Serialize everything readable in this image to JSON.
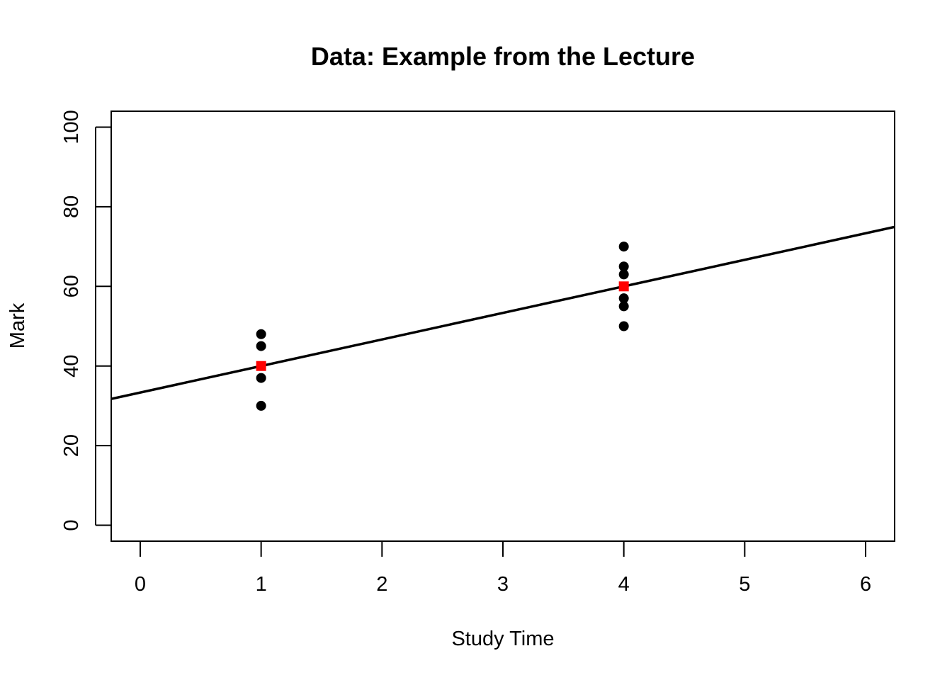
{
  "chart_data": {
    "type": "scatter",
    "title": "Data: Example from the Lecture",
    "xlabel": "Study Time",
    "ylabel": "Mark",
    "xlim": [
      -0.24,
      6.24
    ],
    "ylim": [
      -4,
      104
    ],
    "x_ticks": [
      0,
      1,
      2,
      3,
      4,
      5,
      6
    ],
    "y_ticks": [
      0,
      20,
      40,
      60,
      80,
      100
    ],
    "grid": false,
    "series": [
      {
        "kind": "points",
        "color": "#000000",
        "marker": "circle",
        "x": [
          1,
          1,
          1,
          1,
          4,
          4,
          4,
          4,
          4,
          4
        ],
        "y": [
          48,
          45,
          37,
          30,
          70,
          65,
          63,
          57,
          55,
          50
        ]
      },
      {
        "kind": "points",
        "color": "#ff0000",
        "marker": "square",
        "x": [
          1,
          4
        ],
        "y": [
          40,
          60
        ]
      },
      {
        "kind": "line",
        "color": "#000000",
        "intercept": 33.333,
        "slope": 6.667
      }
    ]
  }
}
